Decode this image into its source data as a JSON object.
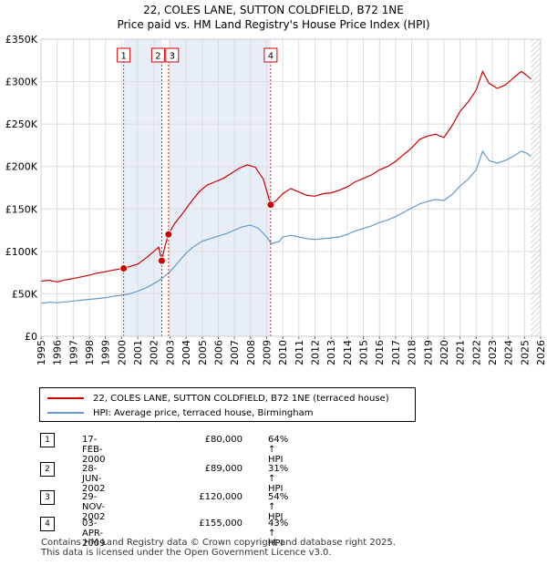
{
  "chart_data": {
    "type": "line",
    "title": "22, COLES LANE, SUTTON COLDFIELD, B72 1NE",
    "subtitle": "Price paid vs. HM Land Registry's House Price Index (HPI)",
    "ylim": [
      0,
      350000
    ],
    "xlim": [
      1995,
      2026
    ],
    "y_ticks": [
      0,
      50000,
      100000,
      150000,
      200000,
      250000,
      300000,
      350000
    ],
    "y_tick_labels": [
      "£0",
      "£50K",
      "£100K",
      "£150K",
      "£200K",
      "£250K",
      "£300K",
      "£350K"
    ],
    "x_ticks": [
      1995,
      1996,
      1997,
      1998,
      1999,
      2000,
      2001,
      2002,
      2003,
      2004,
      2005,
      2006,
      2007,
      2008,
      2009,
      2010,
      2011,
      2012,
      2013,
      2014,
      2015,
      2016,
      2017,
      2018,
      2019,
      2020,
      2021,
      2022,
      2023,
      2024,
      2025,
      2026
    ],
    "grid": true,
    "series": [
      {
        "name": "22, COLES LANE, SUTTON COLDFIELD, B72 1NE (terraced house)",
        "color": "#cc0000",
        "points": [
          [
            1995.0,
            65000
          ],
          [
            1995.5,
            66000
          ],
          [
            1996.0,
            64000
          ],
          [
            1996.5,
            66500
          ],
          [
            1997.0,
            68000
          ],
          [
            1997.5,
            70000
          ],
          [
            1998.0,
            72000
          ],
          [
            1998.5,
            74500
          ],
          [
            1999.0,
            76000
          ],
          [
            1999.5,
            78000
          ],
          [
            2000.13,
            80000
          ],
          [
            2000.5,
            82000
          ],
          [
            2001.0,
            85000
          ],
          [
            2001.5,
            92000
          ],
          [
            2002.0,
            100000
          ],
          [
            2002.3,
            105000
          ],
          [
            2002.49,
            89000
          ],
          [
            2002.7,
            107000
          ],
          [
            2002.91,
            120000
          ],
          [
            2003.3,
            133000
          ],
          [
            2003.8,
            145000
          ],
          [
            2004.3,
            158000
          ],
          [
            2004.8,
            170000
          ],
          [
            2005.3,
            178000
          ],
          [
            2005.8,
            182000
          ],
          [
            2006.3,
            186000
          ],
          [
            2006.8,
            192000
          ],
          [
            2007.3,
            198000
          ],
          [
            2007.8,
            202000
          ],
          [
            2008.3,
            199000
          ],
          [
            2008.8,
            185000
          ],
          [
            2009.25,
            155000
          ],
          [
            2009.6,
            160000
          ],
          [
            2010.0,
            168000
          ],
          [
            2010.5,
            174000
          ],
          [
            2011.0,
            170000
          ],
          [
            2011.5,
            166000
          ],
          [
            2012.0,
            165000
          ],
          [
            2012.5,
            168000
          ],
          [
            2013.0,
            169000
          ],
          [
            2013.5,
            172000
          ],
          [
            2014.0,
            176000
          ],
          [
            2014.5,
            182000
          ],
          [
            2015.0,
            186000
          ],
          [
            2015.5,
            190000
          ],
          [
            2016.0,
            196000
          ],
          [
            2016.5,
            200000
          ],
          [
            2017.0,
            206000
          ],
          [
            2017.5,
            214000
          ],
          [
            2018.0,
            222000
          ],
          [
            2018.5,
            232000
          ],
          [
            2019.0,
            236000
          ],
          [
            2019.5,
            238000
          ],
          [
            2020.0,
            234000
          ],
          [
            2020.5,
            248000
          ],
          [
            2021.0,
            265000
          ],
          [
            2021.5,
            276000
          ],
          [
            2022.0,
            290000
          ],
          [
            2022.4,
            312000
          ],
          [
            2022.8,
            298000
          ],
          [
            2023.3,
            292000
          ],
          [
            2023.8,
            296000
          ],
          [
            2024.3,
            304000
          ],
          [
            2024.8,
            312000
          ],
          [
            2025.1,
            308000
          ],
          [
            2025.4,
            303000
          ]
        ]
      },
      {
        "name": "HPI: Average price, terraced house, Birmingham",
        "color": "#6699cc",
        "points": [
          [
            1995.0,
            39000
          ],
          [
            1995.5,
            40000
          ],
          [
            1996.0,
            39500
          ],
          [
            1996.5,
            40500
          ],
          [
            1997.0,
            41500
          ],
          [
            1997.5,
            42500
          ],
          [
            1998.0,
            43500
          ],
          [
            1998.5,
            44500
          ],
          [
            1999.0,
            45500
          ],
          [
            1999.5,
            47000
          ],
          [
            2000.0,
            48500
          ],
          [
            2000.5,
            50000
          ],
          [
            2001.0,
            53000
          ],
          [
            2001.5,
            57000
          ],
          [
            2002.0,
            62000
          ],
          [
            2002.5,
            68000
          ],
          [
            2003.0,
            76000
          ],
          [
            2003.5,
            87000
          ],
          [
            2004.0,
            98000
          ],
          [
            2004.5,
            106000
          ],
          [
            2005.0,
            112000
          ],
          [
            2005.5,
            115000
          ],
          [
            2006.0,
            118000
          ],
          [
            2006.5,
            121000
          ],
          [
            2007.0,
            125000
          ],
          [
            2007.5,
            129000
          ],
          [
            2008.0,
            131000
          ],
          [
            2008.5,
            127000
          ],
          [
            2009.0,
            117000
          ],
          [
            2009.3,
            109000
          ],
          [
            2009.8,
            112000
          ],
          [
            2010.0,
            117000
          ],
          [
            2010.5,
            119000
          ],
          [
            2011.0,
            117000
          ],
          [
            2011.5,
            115000
          ],
          [
            2012.0,
            114000
          ],
          [
            2012.5,
            115000
          ],
          [
            2013.0,
            116000
          ],
          [
            2013.5,
            117000
          ],
          [
            2014.0,
            120000
          ],
          [
            2014.5,
            124000
          ],
          [
            2015.0,
            127000
          ],
          [
            2015.5,
            130000
          ],
          [
            2016.0,
            134000
          ],
          [
            2016.5,
            137000
          ],
          [
            2017.0,
            141000
          ],
          [
            2017.5,
            146000
          ],
          [
            2018.0,
            151000
          ],
          [
            2018.5,
            156000
          ],
          [
            2019.0,
            159000
          ],
          [
            2019.5,
            161000
          ],
          [
            2020.0,
            160000
          ],
          [
            2020.5,
            167000
          ],
          [
            2021.0,
            177000
          ],
          [
            2021.5,
            185000
          ],
          [
            2022.0,
            196000
          ],
          [
            2022.4,
            218000
          ],
          [
            2022.8,
            207000
          ],
          [
            2023.3,
            204000
          ],
          [
            2023.8,
            207000
          ],
          [
            2024.3,
            212000
          ],
          [
            2024.8,
            218000
          ],
          [
            2025.1,
            216000
          ],
          [
            2025.4,
            212000
          ]
        ]
      }
    ],
    "sales": [
      {
        "label": "1",
        "x": 2000.13,
        "price": 80000
      },
      {
        "label": "2",
        "x": 2002.49,
        "price": 89000
      },
      {
        "label": "3",
        "x": 2002.91,
        "price": 120000
      },
      {
        "label": "4",
        "x": 2009.25,
        "price": 155000
      }
    ],
    "shaded_periods": [
      [
        2000.13,
        2002.49
      ],
      [
        2002.91,
        2009.25
      ]
    ],
    "hatched_from": 2025.4
  },
  "legend": {
    "property_label": "22, COLES LANE, SUTTON COLDFIELD, B72 1NE (terraced house)",
    "hpi_label": "HPI: Average price, terraced house, Birmingham",
    "property_color": "#cc0000",
    "hpi_color": "#6699cc"
  },
  "transactions": [
    {
      "num": "1",
      "date": "17-FEB-2000",
      "price": "£80,000",
      "hpi": "64% ↑ HPI"
    },
    {
      "num": "2",
      "date": "28-JUN-2002",
      "price": "£89,000",
      "hpi": "31% ↑ HPI"
    },
    {
      "num": "3",
      "date": "29-NOV-2002",
      "price": "£120,000",
      "hpi": "54% ↑ HPI"
    },
    {
      "num": "4",
      "date": "03-APR-2009",
      "price": "£155,000",
      "hpi": "43% ↑ HPI"
    }
  ],
  "footer": {
    "line1": "Contains HM Land Registry data © Crown copyright and database right 2025.",
    "line2": "This data is licensed under the Open Government Licence v3.0."
  }
}
